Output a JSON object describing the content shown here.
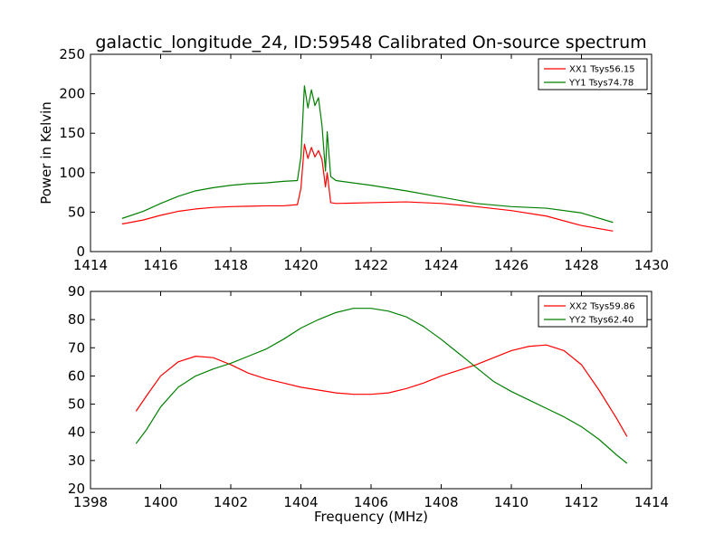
{
  "figure_title": "galactic_longitude_24, ID:59548 Calibrated On-source spectrum",
  "chart_data": [
    {
      "type": "line",
      "title": "galactic_longitude_24, ID:59548 Calibrated On-source spectrum",
      "xlabel": "",
      "ylabel": "Power in Kelvin",
      "xlim": [
        1414,
        1430
      ],
      "ylim": [
        0,
        250
      ],
      "xticks": [
        1414,
        1416,
        1418,
        1420,
        1422,
        1424,
        1426,
        1428,
        1430
      ],
      "yticks": [
        0,
        50,
        100,
        150,
        200,
        250
      ],
      "grid": false,
      "legend_position": "top-right",
      "series": [
        {
          "name": "XX1 Tsys56.15",
          "color": "#ff0000",
          "points": [
            [
              1414.9,
              35
            ],
            [
              1415.5,
              40
            ],
            [
              1416,
              46
            ],
            [
              1416.5,
              51
            ],
            [
              1417,
              54
            ],
            [
              1417.5,
              56
            ],
            [
              1418,
              57
            ],
            [
              1418.5,
              57.5
            ],
            [
              1419,
              58
            ],
            [
              1419.5,
              58
            ],
            [
              1419.9,
              59.5
            ],
            [
              1420.0,
              80
            ],
            [
              1420.1,
              136
            ],
            [
              1420.2,
              118
            ],
            [
              1420.3,
              132
            ],
            [
              1420.4,
              120
            ],
            [
              1420.5,
              128
            ],
            [
              1420.6,
              117
            ],
            [
              1420.7,
              82
            ],
            [
              1420.75,
              100
            ],
            [
              1420.85,
              62
            ],
            [
              1421,
              61
            ],
            [
              1422,
              62
            ],
            [
              1423,
              63
            ],
            [
              1424,
              61
            ],
            [
              1425,
              57
            ],
            [
              1426,
              52
            ],
            [
              1427,
              45
            ],
            [
              1428,
              33
            ],
            [
              1428.9,
              26
            ]
          ]
        },
        {
          "name": "YY1 Tsys74.78",
          "color": "#008000",
          "points": [
            [
              1414.9,
              42
            ],
            [
              1415.5,
              51
            ],
            [
              1416,
              61
            ],
            [
              1416.5,
              70
            ],
            [
              1417,
              77
            ],
            [
              1417.5,
              81
            ],
            [
              1418,
              84
            ],
            [
              1418.5,
              86
            ],
            [
              1419,
              87
            ],
            [
              1419.5,
              89
            ],
            [
              1419.9,
              90
            ],
            [
              1420.0,
              120
            ],
            [
              1420.1,
              210
            ],
            [
              1420.2,
              182
            ],
            [
              1420.3,
              205
            ],
            [
              1420.4,
              185
            ],
            [
              1420.5,
              195
            ],
            [
              1420.6,
              160
            ],
            [
              1420.7,
              102
            ],
            [
              1420.75,
              152
            ],
            [
              1420.85,
              95
            ],
            [
              1421,
              90
            ],
            [
              1422,
              84
            ],
            [
              1423,
              77
            ],
            [
              1424,
              69
            ],
            [
              1425,
              61
            ],
            [
              1426,
              57
            ],
            [
              1427,
              55
            ],
            [
              1428,
              49
            ],
            [
              1428.9,
              37
            ]
          ]
        }
      ]
    },
    {
      "type": "line",
      "title": "",
      "xlabel": "Frequency (MHz)",
      "ylabel": "",
      "xlim": [
        1398,
        1414
      ],
      "ylim": [
        20,
        90
      ],
      "xticks": [
        1398,
        1400,
        1402,
        1404,
        1406,
        1408,
        1410,
        1412,
        1414
      ],
      "yticks": [
        20,
        30,
        40,
        50,
        60,
        70,
        80,
        90
      ],
      "grid": false,
      "legend_position": "top-right",
      "series": [
        {
          "name": "XX2 Tsys59.86",
          "color": "#ff0000",
          "points": [
            [
              1399.3,
              47.5
            ],
            [
              1399.6,
              53
            ],
            [
              1400,
              60
            ],
            [
              1400.5,
              65
            ],
            [
              1401,
              67
            ],
            [
              1401.5,
              66.5
            ],
            [
              1402,
              64
            ],
            [
              1402.5,
              61
            ],
            [
              1403,
              59
            ],
            [
              1403.5,
              57.5
            ],
            [
              1404,
              56
            ],
            [
              1404.5,
              55
            ],
            [
              1405,
              54
            ],
            [
              1405.5,
              53.5
            ],
            [
              1406,
              53.5
            ],
            [
              1406.5,
              54
            ],
            [
              1407,
              55.5
            ],
            [
              1407.5,
              57.5
            ],
            [
              1408,
              60
            ],
            [
              1408.5,
              62
            ],
            [
              1409,
              64
            ],
            [
              1409.5,
              66.5
            ],
            [
              1410,
              69
            ],
            [
              1410.5,
              70.5
            ],
            [
              1411,
              71
            ],
            [
              1411.5,
              69
            ],
            [
              1412,
              64
            ],
            [
              1412.5,
              55
            ],
            [
              1413,
              45
            ],
            [
              1413.3,
              38.5
            ]
          ]
        },
        {
          "name": "YY2 Tsys62.40",
          "color": "#008000",
          "points": [
            [
              1399.3,
              36
            ],
            [
              1399.6,
              41
            ],
            [
              1400,
              49
            ],
            [
              1400.5,
              56
            ],
            [
              1401,
              60
            ],
            [
              1401.5,
              62.5
            ],
            [
              1402,
              64.5
            ],
            [
              1402.5,
              67
            ],
            [
              1403,
              69.5
            ],
            [
              1403.5,
              73
            ],
            [
              1404,
              77
            ],
            [
              1404.5,
              80
            ],
            [
              1405,
              82.5
            ],
            [
              1405.5,
              84
            ],
            [
              1406,
              84
            ],
            [
              1406.5,
              83
            ],
            [
              1407,
              81
            ],
            [
              1407.5,
              77.5
            ],
            [
              1408,
              73
            ],
            [
              1408.5,
              68
            ],
            [
              1409,
              63
            ],
            [
              1409.5,
              58
            ],
            [
              1410,
              54.5
            ],
            [
              1410.5,
              51.5
            ],
            [
              1411,
              48.5
            ],
            [
              1411.5,
              45.5
            ],
            [
              1412,
              42
            ],
            [
              1412.5,
              37.5
            ],
            [
              1413,
              32
            ],
            [
              1413.3,
              29
            ]
          ]
        }
      ]
    }
  ]
}
